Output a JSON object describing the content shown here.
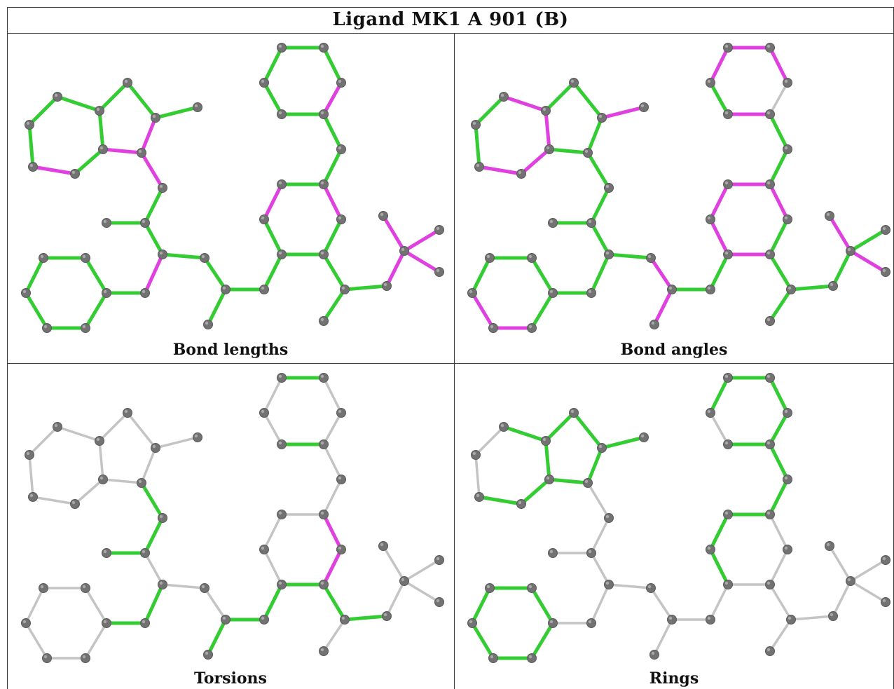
{
  "title": "Ligand MK1 A 901 (B)",
  "colors": {
    "good": "#33cc33",
    "outlier": "#e040e0",
    "none": "#c4c4c4",
    "atom": "#727272"
  },
  "panels": [
    {
      "caption": "Bond lengths",
      "bonds": [
        "g",
        "g",
        "g",
        "g",
        "m",
        "m",
        "g",
        "g",
        "m",
        "g",
        "g",
        "m",
        "g",
        "g",
        "g",
        "m",
        "g",
        "g",
        "g",
        "g",
        "g",
        "g",
        "g",
        "g",
        "g",
        "g",
        "g",
        "g",
        "g",
        "g",
        "m",
        "g",
        "m",
        "g",
        "g",
        "g",
        "g",
        "g",
        "g",
        "g",
        "g",
        "m",
        "g",
        "g",
        "g",
        "m",
        "m",
        "m",
        "m"
      ]
    },
    {
      "caption": "Bond angles",
      "bonds": [
        "m",
        "g",
        "g",
        "m",
        "g",
        "g",
        "m",
        "m",
        "m",
        "g",
        "g",
        "g",
        "g",
        "g",
        "g",
        "g",
        "g",
        "g",
        "m",
        "m",
        "g",
        "g",
        "g",
        "g",
        "m",
        "m",
        "g",
        "g",
        "m",
        "g",
        "m",
        "m",
        "m",
        "m",
        "g",
        "g",
        "m",
        "g",
        "m",
        "m",
        "m",
        "n",
        "g",
        "g",
        "g",
        "g",
        "m",
        "g",
        "m"
      ]
    },
    {
      "caption": "Torsions",
      "bonds": [
        "n",
        "n",
        "n",
        "n",
        "n",
        "n",
        "n",
        "n",
        "n",
        "n",
        "n",
        "g",
        "g",
        "g",
        "n",
        "g",
        "g",
        "n",
        "n",
        "n",
        "n",
        "n",
        "n",
        "n",
        "n",
        "g",
        "g",
        "g",
        "g",
        "m",
        "m",
        "n",
        "n",
        "n",
        "n",
        "n",
        "g",
        "n",
        "n",
        "g",
        "n",
        "n",
        "g",
        "g",
        "n",
        "n",
        "n",
        "n",
        "n"
      ]
    },
    {
      "caption": "Rings",
      "bonds": [
        "g",
        "g",
        "g",
        "g",
        "g",
        "g",
        "g",
        "g",
        "g",
        "n",
        "n",
        "n",
        "n",
        "n",
        "n",
        "n",
        "n",
        "g",
        "g",
        "g",
        "g",
        "g",
        "g",
        "n",
        "n",
        "n",
        "n",
        "n",
        "n",
        "n",
        "n",
        "g",
        "g",
        "g",
        "g",
        "g",
        "g",
        "n",
        "g",
        "g",
        "g",
        "g",
        "n",
        "n",
        "n",
        "n",
        "n",
        "n",
        "n"
      ]
    }
  ]
}
